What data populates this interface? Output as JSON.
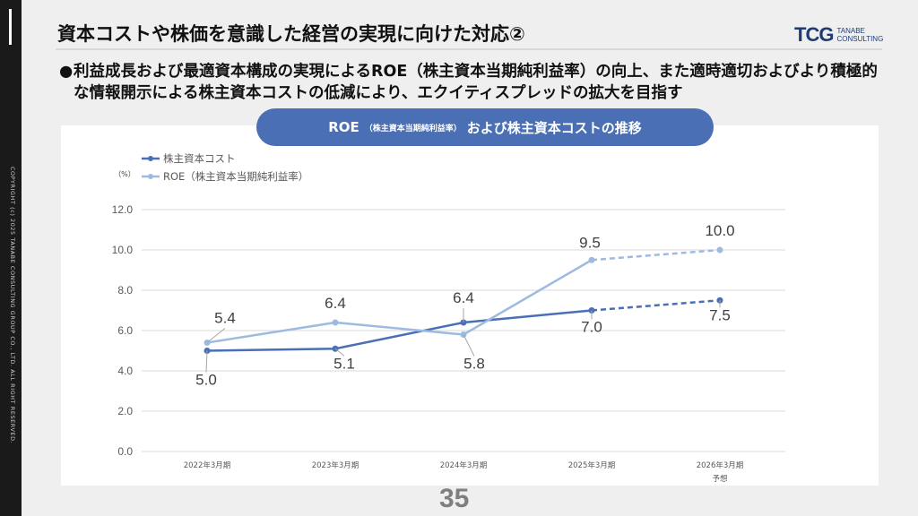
{
  "title": "資本コストや株価を意識した経営の実現に向けた対応②",
  "logo": {
    "mark": "TCG",
    "text_line1": "TANABE",
    "text_line2": "CONSULTING"
  },
  "bullet": {
    "marker": "●",
    "text": "利益成長および最適資本構成の実現によるROE（株主資本当期純利益率）の向上、また適時適切およびより積極的な情報開示による株主資本コストの低減により、エクイティスプレッドの拡大を目指す"
  },
  "pill": {
    "part1": "ROE",
    "part2": "（株主資本当期純利益率）",
    "part3": "および株主資本コストの推移"
  },
  "sidebar": {
    "copyright": "COPYRIGHT (c) 2025 TANABE CONSULTING GROUP CO., LTD. ALL RIGHT RESERVED."
  },
  "page_number": "35",
  "colors": {
    "series_cost": "#4a6fb5",
    "series_roe": "#9dbbe0",
    "pill": "#4a6fb5"
  },
  "chart_data": {
    "type": "line",
    "title": "ROE（株主資本当期純利益率）および株主資本コストの推移",
    "ylabel": "（%）",
    "categories": [
      "2022年3月期",
      "2023年3月期",
      "2024年3月期",
      "2025年3月期",
      "2026年3月期"
    ],
    "category_sublabels": [
      "",
      "",
      "",
      "",
      "予想"
    ],
    "ylim": [
      0,
      12
    ],
    "yticks": [
      "0.0",
      "2.0",
      "4.0",
      "6.0",
      "8.0",
      "10.0",
      "12.0"
    ],
    "grid": true,
    "legend": "top-left",
    "forecast_from_index": 3,
    "series": [
      {
        "name": "株主資本コスト",
        "values": [
          5.0,
          5.1,
          6.4,
          7.0,
          7.5
        ],
        "labels": [
          "5.0",
          "5.1",
          "6.4",
          "7.0",
          "7.5"
        ],
        "color": "#4a6fb5"
      },
      {
        "name": "ROE（株主資本当期純利益率）",
        "values": [
          5.4,
          6.4,
          5.8,
          9.5,
          10.0
        ],
        "labels": [
          "5.4",
          "6.4",
          "5.8",
          "9.5",
          "10.0"
        ],
        "color": "#9dbbe0"
      }
    ]
  }
}
